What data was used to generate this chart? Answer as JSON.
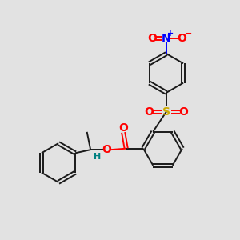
{
  "background_color": "#e2e2e2",
  "bond_color": "#1a1a1a",
  "atom_colors": {
    "O": "#ff0000",
    "N": "#0000ff",
    "S": "#ccaa00",
    "H": "#008080",
    "C": "#1a1a1a"
  },
  "figsize": [
    3.0,
    3.0
  ],
  "dpi": 100
}
